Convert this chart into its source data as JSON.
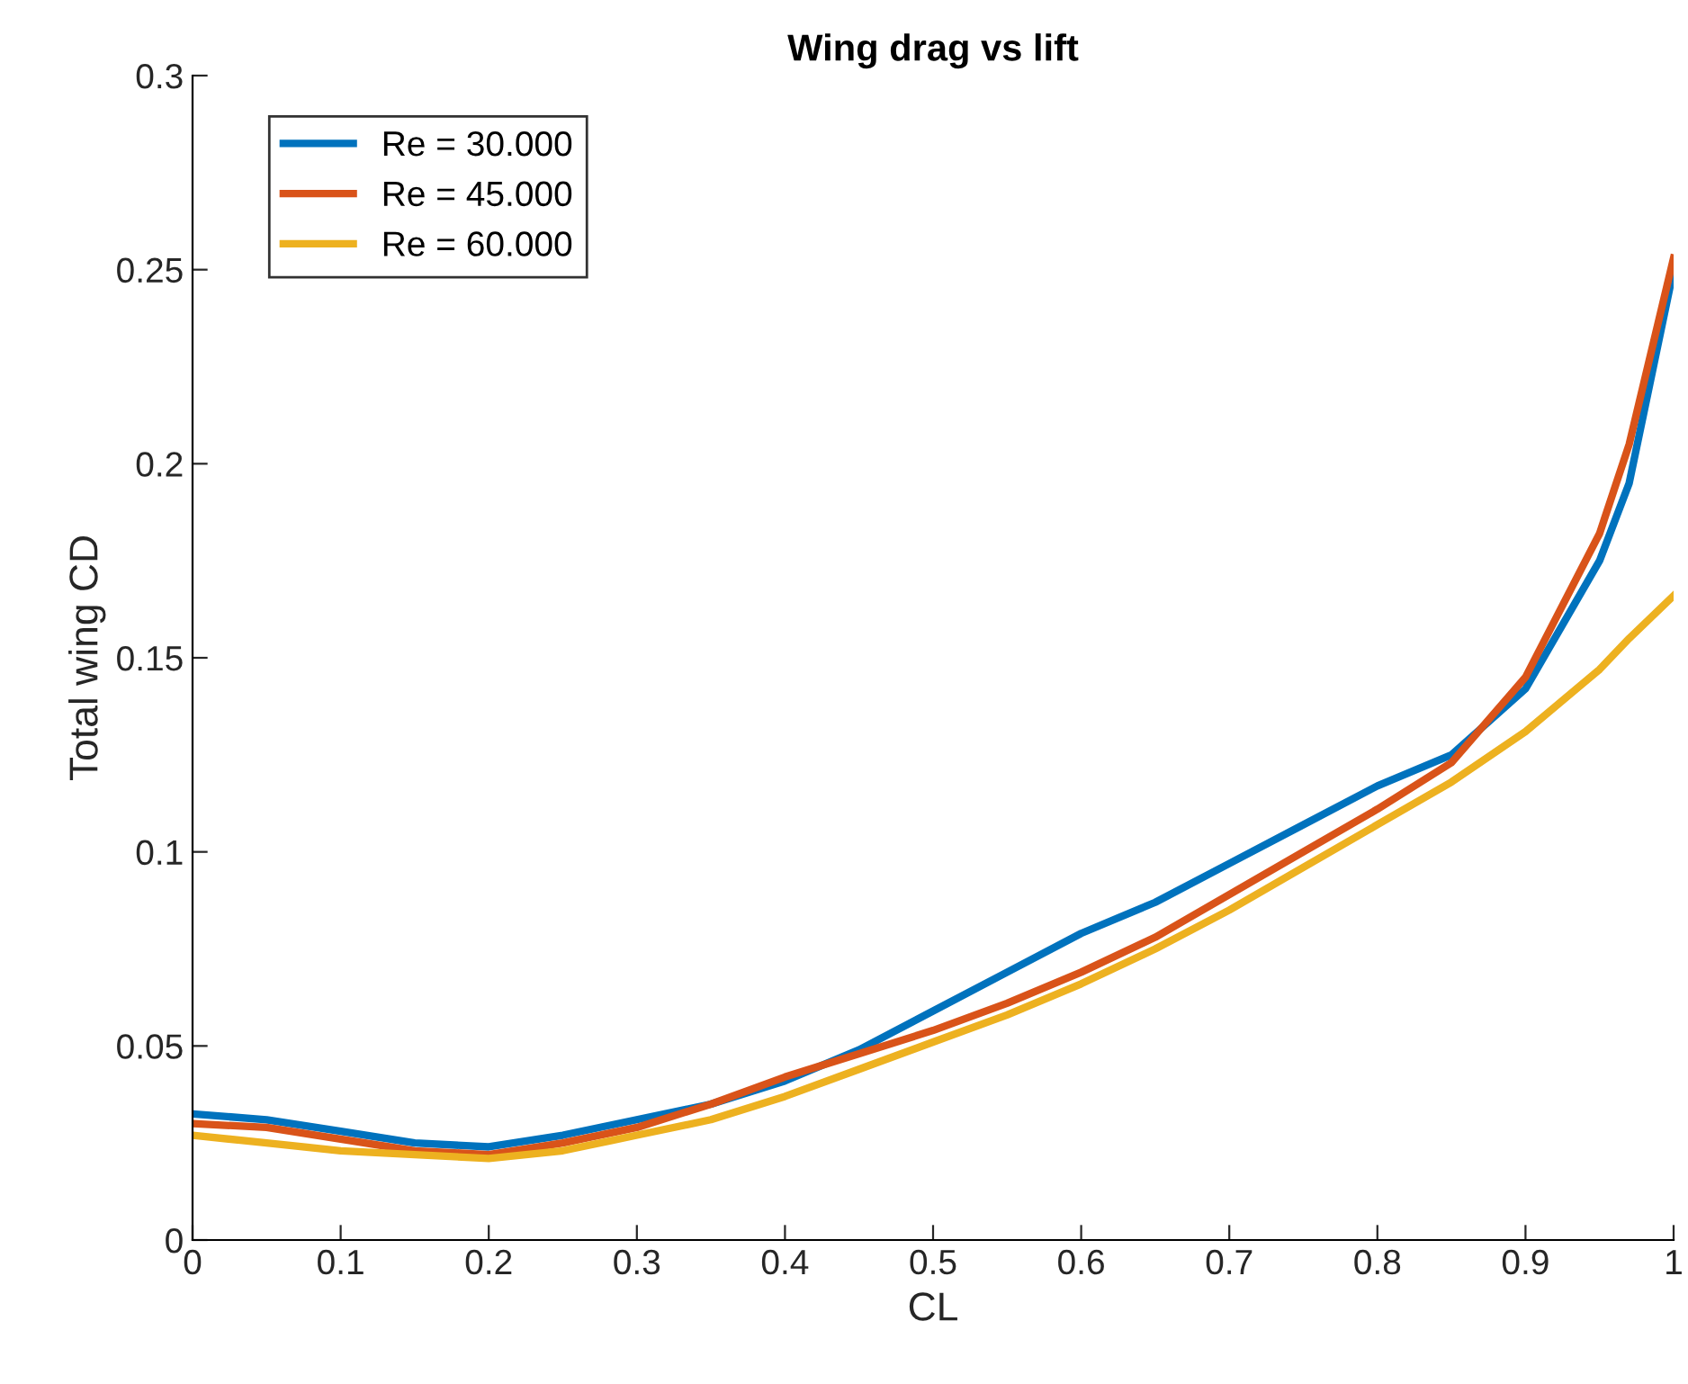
{
  "chart_data": {
    "type": "line",
    "title": "Wing drag vs lift",
    "xlabel": "CL",
    "ylabel": "Total wing CD",
    "x": [
      0,
      0.05,
      0.1,
      0.15,
      0.2,
      0.25,
      0.3,
      0.35,
      0.4,
      0.45,
      0.5,
      0.55,
      0.6,
      0.65,
      0.7,
      0.75,
      0.8,
      0.85,
      0.9,
      0.95,
      0.97,
      1.0
    ],
    "series": [
      {
        "name": "Re = 30.000",
        "color": "#0072bd",
        "values": [
          0.0325,
          0.031,
          0.028,
          0.025,
          0.024,
          0.027,
          0.031,
          0.035,
          0.041,
          0.049,
          0.059,
          0.069,
          0.079,
          0.087,
          0.097,
          0.107,
          0.117,
          0.125,
          0.142,
          0.175,
          0.195,
          0.25
        ]
      },
      {
        "name": "Re = 45.000",
        "color": "#d95319",
        "values": [
          0.03,
          0.029,
          0.026,
          0.023,
          0.022,
          0.025,
          0.029,
          0.035,
          0.042,
          0.048,
          0.054,
          0.061,
          0.069,
          0.078,
          0.089,
          0.1,
          0.111,
          0.123,
          0.145,
          0.182,
          0.205,
          0.253
        ]
      },
      {
        "name": "Re = 60.000",
        "color": "#edb120",
        "values": [
          0.027,
          0.025,
          0.023,
          0.022,
          0.021,
          0.023,
          0.027,
          0.031,
          0.037,
          0.044,
          0.051,
          0.058,
          0.066,
          0.075,
          0.085,
          0.096,
          0.107,
          0.118,
          0.131,
          0.147,
          0.155,
          0.166
        ]
      }
    ],
    "xlim": [
      0,
      1
    ],
    "xticks": [
      0,
      0.1,
      0.2,
      0.3,
      0.4,
      0.5,
      0.6,
      0.7,
      0.8,
      0.9,
      1
    ],
    "ylim": [
      0,
      0.3
    ],
    "yticks": [
      0,
      0.05,
      0.1,
      0.15,
      0.2,
      0.25,
      0.3
    ],
    "grid": false,
    "legend": "top left",
    "marker": "none",
    "line_style": "solid"
  }
}
